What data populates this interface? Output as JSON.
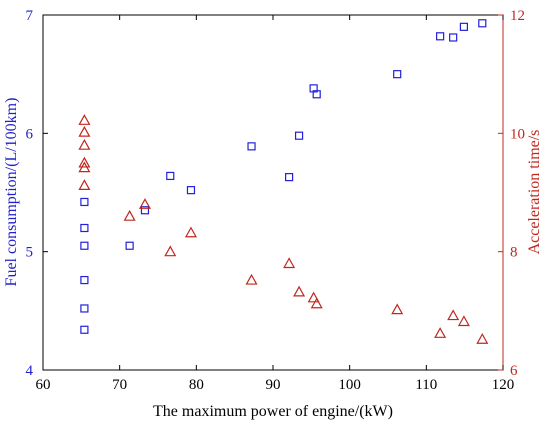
{
  "chart_data": {
    "type": "scatter",
    "title": "",
    "xlabel": "The maximum power of engine/(kW)",
    "ylabel_left": "Fuel consumption/(L/100km)",
    "ylabel_right": "Acceleration time/s",
    "xlim": [
      60,
      120
    ],
    "ylim_left": [
      4,
      7
    ],
    "ylim_right": [
      6,
      12
    ],
    "x_ticks": [
      "60",
      "70",
      "80",
      "90",
      "100",
      "110",
      "120"
    ],
    "y_left_ticks": [
      "4",
      "5",
      "6",
      "7"
    ],
    "y_right_ticks": [
      "6",
      "8",
      "10",
      "12"
    ],
    "grid": false,
    "colors": {
      "fuel": "#2121d9",
      "accel": "#c0281f",
      "left_axis": "#1f1fcc",
      "right_axis": "#c0281f"
    },
    "series": [
      {
        "marker": "square",
        "axis": "left",
        "points": [
          [
            65.4,
            4.34
          ],
          [
            65.4,
            4.52
          ],
          [
            65.4,
            4.76
          ],
          [
            65.4,
            5.05
          ],
          [
            65.4,
            5.2
          ],
          [
            65.4,
            5.42
          ],
          [
            71.3,
            5.05
          ],
          [
            73.3,
            5.35
          ],
          [
            76.6,
            5.64
          ],
          [
            79.3,
            5.52
          ],
          [
            87.2,
            5.89
          ],
          [
            92.1,
            5.63
          ],
          [
            93.4,
            5.98
          ],
          [
            95.3,
            6.38
          ],
          [
            95.7,
            6.33
          ],
          [
            106.2,
            6.5
          ],
          [
            111.8,
            6.82
          ],
          [
            113.5,
            6.81
          ],
          [
            114.9,
            6.9
          ],
          [
            117.3,
            6.93
          ]
        ]
      },
      {
        "marker": "triangle",
        "axis": "right",
        "points": [
          [
            65.4,
            9.12
          ],
          [
            65.4,
            9.42
          ],
          [
            65.4,
            9.5
          ],
          [
            65.4,
            9.8
          ],
          [
            65.4,
            10.02
          ],
          [
            65.4,
            10.22
          ],
          [
            71.3,
            8.6
          ],
          [
            73.3,
            8.8
          ],
          [
            76.6,
            8.0
          ],
          [
            79.3,
            8.32
          ],
          [
            87.2,
            7.52
          ],
          [
            92.1,
            7.8
          ],
          [
            93.4,
            7.32
          ],
          [
            95.3,
            7.22
          ],
          [
            95.7,
            7.12
          ],
          [
            106.2,
            7.02
          ],
          [
            111.8,
            6.62
          ],
          [
            113.5,
            6.92
          ],
          [
            114.9,
            6.82
          ],
          [
            117.3,
            6.52
          ]
        ]
      }
    ]
  }
}
